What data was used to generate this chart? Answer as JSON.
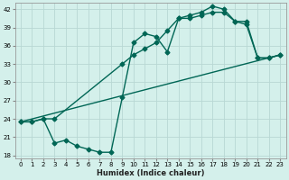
{
  "xlabel": "Humidex (Indice chaleur)",
  "background_color": "#d4f0eb",
  "grid_color": "#b8d8d4",
  "line_color": "#006655",
  "xlim": [
    -0.5,
    23.5
  ],
  "ylim": [
    17.5,
    43.0
  ],
  "xticks": [
    0,
    1,
    2,
    3,
    4,
    5,
    6,
    7,
    8,
    9,
    10,
    11,
    12,
    13,
    14,
    15,
    16,
    17,
    18,
    19,
    20,
    21,
    22,
    23
  ],
  "yticks": [
    18,
    21,
    24,
    27,
    30,
    33,
    36,
    39,
    42
  ],
  "line1_x": [
    0,
    1,
    2,
    3,
    4,
    5,
    6,
    7,
    8,
    9,
    10,
    11,
    12,
    13,
    14,
    15,
    16,
    17,
    18,
    19,
    20,
    21,
    22,
    23
  ],
  "line1_y": [
    23.5,
    23.5,
    24.0,
    20.0,
    20.5,
    19.5,
    19.0,
    18.5,
    18.5,
    27.5,
    36.5,
    38.0,
    37.5,
    35.0,
    40.5,
    40.5,
    41.0,
    41.5,
    41.5,
    40.0,
    39.5,
    34.0,
    34.0,
    34.5
  ],
  "line2_x": [
    0,
    1,
    2,
    3,
    9,
    10,
    11,
    12,
    13,
    14,
    15,
    16,
    17,
    18,
    19,
    20,
    21,
    22,
    23
  ],
  "line2_y": [
    23.5,
    23.5,
    24.0,
    24.0,
    33.0,
    34.5,
    35.5,
    36.5,
    38.5,
    40.5,
    41.0,
    41.5,
    42.5,
    42.0,
    40.0,
    40.0,
    34.0,
    34.0,
    34.5
  ],
  "line3_x": [
    0,
    23
  ],
  "line3_y": [
    23.5,
    34.5
  ],
  "marker_size": 2.5,
  "linewidth": 1.0
}
